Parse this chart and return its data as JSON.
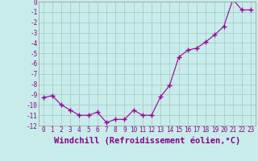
{
  "x": [
    0,
    1,
    2,
    3,
    4,
    5,
    6,
    7,
    8,
    9,
    10,
    11,
    12,
    13,
    14,
    15,
    16,
    17,
    18,
    19,
    20,
    21,
    22,
    23
  ],
  "y": [
    -9.3,
    -9.1,
    -10.0,
    -10.5,
    -11.0,
    -11.0,
    -10.7,
    -11.7,
    -11.4,
    -11.4,
    -10.5,
    -11.0,
    -11.0,
    -9.2,
    -8.1,
    -5.4,
    -4.7,
    -4.5,
    -3.9,
    -3.2,
    -2.4,
    0.2,
    -0.8,
    -0.8
  ],
  "line_color": "#990099",
  "marker": "+",
  "marker_size": 4,
  "background_color": "#c8ecea",
  "grid_color": "#a8ccc8",
  "xlabel": "Windchill (Refroidissement éolien,°C)",
  "ylim": [
    -12,
    0
  ],
  "xlim": [
    -0.5,
    23.5
  ],
  "yticks": [
    0,
    -1,
    -2,
    -3,
    -4,
    -5,
    -6,
    -7,
    -8,
    -9,
    -10,
    -11,
    -12
  ],
  "ytick_labels": [
    "0",
    "-1",
    "-2",
    "-3",
    "-4",
    "-5",
    "-6",
    "-7",
    "-8",
    "-9",
    "-10",
    "-11",
    "-12"
  ],
  "xticks": [
    0,
    1,
    2,
    3,
    4,
    5,
    6,
    7,
    8,
    9,
    10,
    11,
    12,
    13,
    14,
    15,
    16,
    17,
    18,
    19,
    20,
    21,
    22,
    23
  ],
  "tick_label_color": "#880088",
  "tick_label_fontsize": 5.5,
  "xlabel_fontsize": 7.5,
  "linewidth": 0.8,
  "marker_linewidth": 1.0
}
